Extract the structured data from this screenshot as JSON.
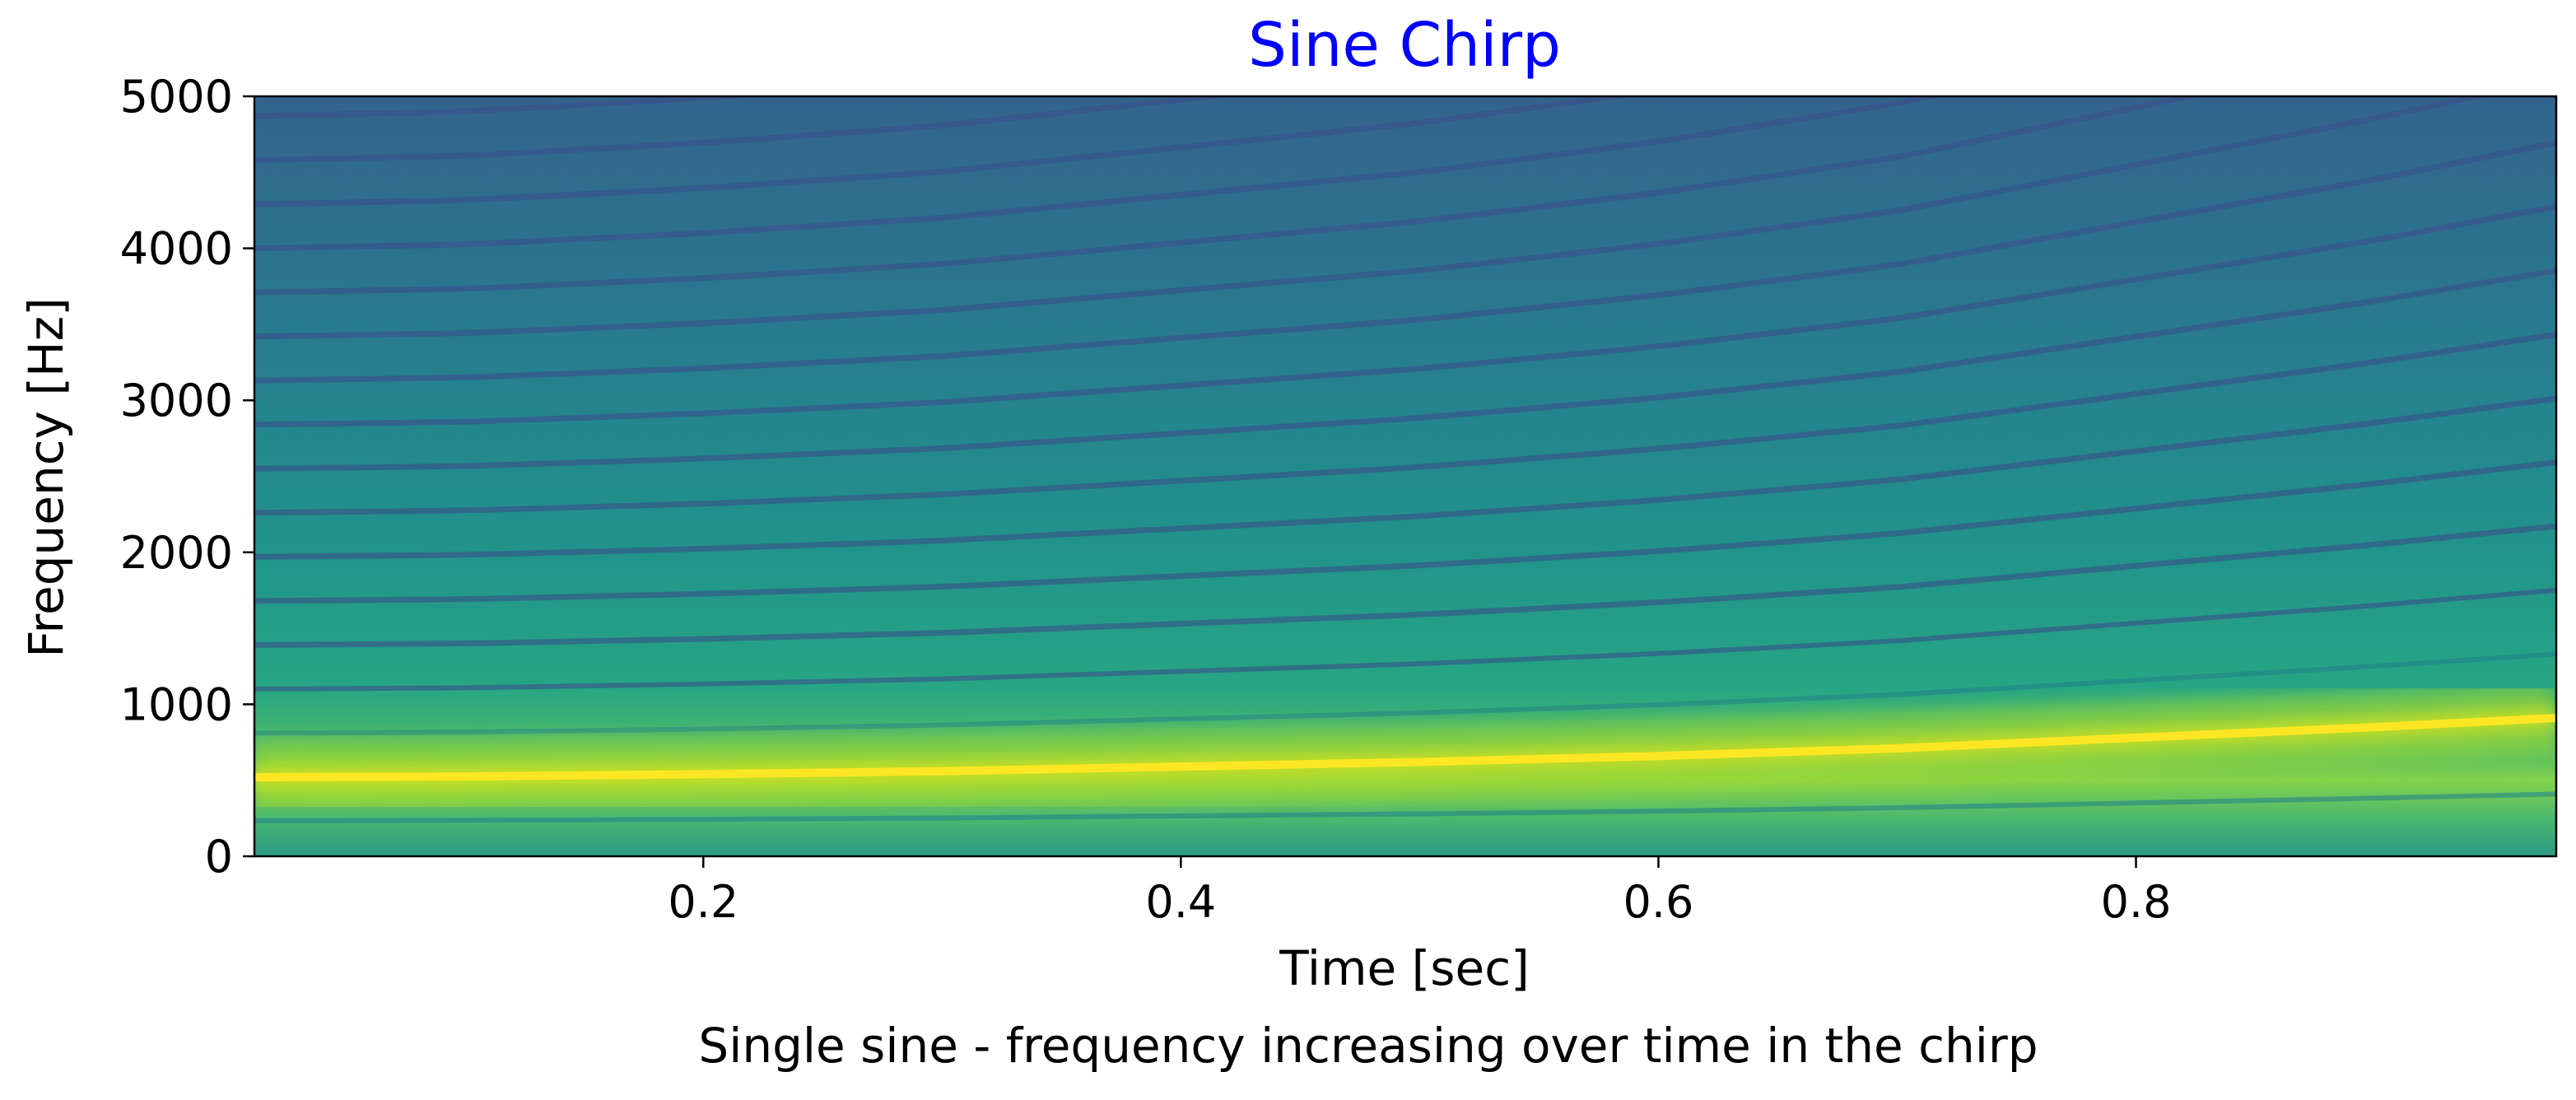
{
  "chart_data": {
    "type": "heatmap",
    "subtype": "spectrogram",
    "title": "Sine Chirp",
    "title_color": "#0000ff",
    "xlabel": "Time [sec]",
    "ylabel": "Frequency [Hz]",
    "caption": "Single sine - frequency increasing over time in the chirp",
    "xlim": [
      0.012,
      0.976
    ],
    "ylim": [
      0,
      5000
    ],
    "xticks": [
      0.2,
      0.4,
      0.6,
      0.8
    ],
    "xtick_labels": [
      "0.2",
      "0.4",
      "0.6",
      "0.8"
    ],
    "yticks": [
      0,
      1000,
      2000,
      3000,
      4000,
      5000
    ],
    "ytick_labels": [
      "0",
      "1000",
      "2000",
      "3000",
      "4000",
      "5000"
    ],
    "colormap": "viridis",
    "grid": false,
    "series": [
      {
        "name": "",
        "x": [
          0.012,
          0.1,
          0.2,
          0.3,
          0.4,
          0.5,
          0.6,
          0.7,
          0.8,
          0.9,
          0.976
        ],
        "y": [
          520,
          525,
          540,
          560,
          590,
          620,
          660,
          710,
          780,
          850,
          910
        ]
      }
    ]
  }
}
